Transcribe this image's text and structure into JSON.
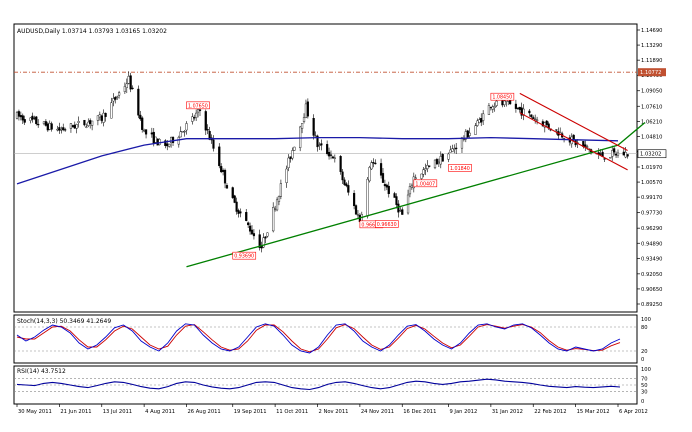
{
  "header": {
    "symbol_line": "AUDUSD,Daily  1.03714 1.03793 1.03165 1.03202"
  },
  "price_axis": [
    "1.14690",
    "1.13290",
    "1.11890",
    "1.10490",
    "1.09050",
    "1.07610",
    "1.06210",
    "1.04810",
    "1.03410",
    "1.01970",
    "1.00570",
    "0.99170",
    "0.97730",
    "0.96290",
    "0.94890",
    "0.93490",
    "0.92050",
    "0.90650",
    "0.89250"
  ],
  "price_markers": {
    "level_line_label": "1.10772",
    "current_label": "1.03202"
  },
  "annotations": [
    "1.07650",
    "1.08450",
    "0.93690",
    "0.96600",
    "0.96630",
    "1.00407",
    "1.01840"
  ],
  "stoch_panel": {
    "title": "Stoch(14,3,3) 50.3469 41.2649",
    "ticks": [
      "100",
      "80",
      "20",
      "0"
    ]
  },
  "rsi_panel": {
    "title": "RSI(14) 43.7512",
    "ticks": [
      "100",
      "70",
      "50",
      "30",
      "0"
    ]
  },
  "time_axis": [
    "30 May 2011",
    "21 Jun 2011",
    "13 Jul 2011",
    "4 Aug 2011",
    "26 Aug 2011",
    "19 Sep 2011",
    "11 Oct 2011",
    "2 Nov 2011",
    "24 Nov 2011",
    "16 Dec 2011",
    "9 Jan 2012",
    "31 Jan 2012",
    "22 Feb 2012",
    "15 Mar 2012",
    "6 Apr 2012"
  ],
  "colors": {
    "candle": "#000000",
    "ma": "#1a1aa8",
    "trendline": "#008000",
    "channel": "#cc0000",
    "level": "#c05030",
    "stoch_main": "#0000cc",
    "stoch_signal": "#cc0000",
    "rsi": "#00009c",
    "label_box": "#ff0000"
  },
  "chart_data": {
    "type": "candlestick",
    "symbol": "AUDUSD",
    "timeframe": "Daily",
    "ohlc_last": {
      "open": 1.03714,
      "high": 1.03793,
      "low": 1.03165,
      "close": 1.03202
    },
    "ylim": [
      0.8925,
      1.1469
    ],
    "close_path": [
      [
        "30 May 2011",
        1.067
      ],
      [
        "21 Jun 2011",
        1.054
      ],
      [
        "13 Jul 2011",
        1.065
      ],
      [
        "27 Jul 2011",
        1.101
      ],
      [
        "4 Aug 2011",
        1.052
      ],
      [
        "15 Aug 2011",
        1.038
      ],
      [
        "26 Aug 2011",
        1.058
      ],
      [
        "2 Sep 2011",
        1.072
      ],
      [
        "19 Sep 2011",
        0.988
      ],
      [
        "4 Oct 2011",
        0.945
      ],
      [
        "11 Oct 2011",
        0.985
      ],
      [
        "27 Oct 2011",
        1.075
      ],
      [
        "2 Nov 2011",
        1.04
      ],
      [
        "10 Nov 2011",
        1.03
      ],
      [
        "24 Nov 2011",
        0.97
      ],
      [
        "30 Nov 2011",
        1.026
      ],
      [
        "16 Dec 2011",
        0.975
      ],
      [
        "22 Dec 2011",
        1.01
      ],
      [
        "9 Jan 2012",
        1.032
      ],
      [
        "24 Jan 2012",
        1.06
      ],
      [
        "31 Jan 2012",
        1.078
      ],
      [
        "9 Feb 2012",
        1.078
      ],
      [
        "22 Feb 2012",
        1.066
      ],
      [
        "8 Mar 2012",
        1.05
      ],
      [
        "15 Mar 2012",
        1.042
      ],
      [
        "28 Mar 2012",
        1.03
      ],
      [
        "6 Apr 2012",
        1.032
      ],
      [
        "11 Apr 2012",
        1.032
      ]
    ],
    "moving_average": [
      [
        "30 May 2011",
        1.004
      ],
      [
        "13 Jul 2011",
        1.03
      ],
      [
        "4 Aug 2011",
        1.04
      ],
      [
        "26 Aug 2011",
        1.046
      ],
      [
        "19 Sep 2011",
        1.046
      ],
      [
        "11 Oct 2011",
        1.046
      ],
      [
        "2 Nov 2011",
        1.047
      ],
      [
        "24 Nov 2011",
        1.047
      ],
      [
        "16 Dec 2011",
        1.046
      ],
      [
        "9 Jan 2012",
        1.046
      ],
      [
        "31 Jan 2012",
        1.047
      ],
      [
        "22 Feb 2012",
        1.046
      ],
      [
        "15 Mar 2012",
        1.045
      ],
      [
        "6 Apr 2012",
        1.044
      ]
    ],
    "trendline": [
      [
        "26 Aug 2011",
        0.927
      ],
      [
        "6 Apr 2012",
        1.04
      ],
      [
        "20 Apr 2012",
        1.061
      ]
    ],
    "channel": {
      "upper": [
        [
          "15 Feb 2012",
          1.088
        ],
        [
          "11 Apr 2012",
          1.035
        ]
      ],
      "lower": [
        [
          "15 Feb 2012",
          1.07
        ],
        [
          "11 Apr 2012",
          1.017
        ]
      ]
    },
    "horizontal_level": 1.10772,
    "labels": [
      {
        "text": "1.07650",
        "at": "26 Aug 2011",
        "price": 1.0765
      },
      {
        "text": "1.08450",
        "at": "31 Jan 2012",
        "price": 1.0845
      },
      {
        "text": "0.93690",
        "at": "19 Sep 2011",
        "price": 0.9369
      },
      {
        "text": "0.96600",
        "at": "24 Nov 2011",
        "price": 0.966
      },
      {
        "text": "0.96630",
        "at": "2 Dec 2011",
        "price": 0.9663
      },
      {
        "text": "1.00407",
        "at": "22 Dec 2011",
        "price": 1.0041
      },
      {
        "text": "1.01840",
        "at": "9 Jan 2012",
        "price": 1.0184
      }
    ],
    "stochastic": {
      "name": "Stoch(14,3,3)",
      "main": 50.3469,
      "signal": 41.2649,
      "levels": [
        80,
        20
      ],
      "ylim": [
        0,
        100
      ],
      "main_path": [
        60,
        45,
        55,
        72,
        85,
        80,
        65,
        40,
        25,
        35,
        55,
        78,
        85,
        70,
        45,
        30,
        20,
        40,
        70,
        88,
        85,
        60,
        40,
        25,
        20,
        30,
        55,
        80,
        88,
        82,
        60,
        35,
        20,
        15,
        30,
        60,
        85,
        88,
        70,
        45,
        30,
        20,
        35,
        60,
        82,
        86,
        70,
        50,
        35,
        25,
        40,
        65,
        85,
        88,
        80,
        75,
        85,
        88,
        78,
        60,
        40,
        25,
        20,
        30,
        25,
        20,
        25,
        40,
        50
      ],
      "signal_path": [
        55,
        50,
        50,
        65,
        80,
        82,
        70,
        48,
        30,
        30,
        48,
        70,
        82,
        75,
        55,
        35,
        25,
        32,
        60,
        82,
        86,
        68,
        48,
        30,
        22,
        25,
        45,
        72,
        85,
        85,
        68,
        45,
        25,
        18,
        25,
        50,
        78,
        86,
        76,
        55,
        35,
        24,
        30,
        52,
        76,
        84,
        75,
        57,
        40,
        28,
        35,
        57,
        80,
        86,
        82,
        77,
        82,
        86,
        80,
        66,
        46,
        30,
        22,
        26,
        24,
        21,
        22,
        33,
        41
      ]
    },
    "rsi": {
      "name": "RSI(14)",
      "value": 43.7512,
      "levels": [
        70,
        50,
        30
      ],
      "ylim": [
        0,
        100
      ],
      "path": [
        52,
        50,
        48,
        55,
        58,
        55,
        50,
        45,
        42,
        48,
        55,
        60,
        58,
        52,
        45,
        40,
        38,
        45,
        55,
        60,
        58,
        50,
        44,
        40,
        38,
        42,
        50,
        58,
        60,
        58,
        50,
        42,
        38,
        36,
        42,
        52,
        58,
        60,
        55,
        48,
        42,
        38,
        42,
        50,
        58,
        62,
        60,
        55,
        52,
        55,
        60,
        62,
        65,
        68,
        66,
        62,
        60,
        58,
        55,
        50,
        46,
        44,
        42,
        45,
        43,
        42,
        44,
        46,
        43.75
      ]
    }
  }
}
